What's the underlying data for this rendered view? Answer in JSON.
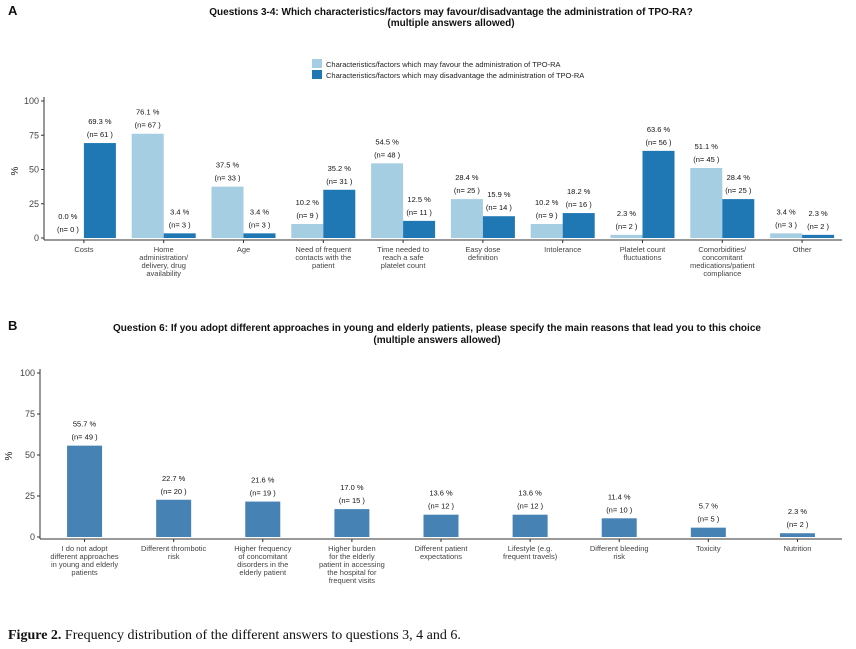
{
  "caption": {
    "label": "Figure 2.",
    "text": " Frequency distribution of the different answers to questions 3, 4 and 6."
  },
  "chart_data": [
    {
      "panel_label": "A",
      "type": "bar",
      "title": "Questions 3-4: Which characteristics/factors may favour/disadvantage the administration of TPO-RA?",
      "subtitle": "(multiple answers allowed)",
      "ylabel": "%",
      "xlabel": "",
      "ylim": [
        0,
        100
      ],
      "yticks": [
        "0",
        "25",
        "50",
        "75",
        "100"
      ],
      "grid": false,
      "legend_position": "top",
      "categories": [
        [
          "Costs"
        ],
        [
          "Home",
          "administration/",
          "delivery, drug",
          "availability"
        ],
        [
          "Age"
        ],
        [
          "Need of frequent",
          "contacts with the",
          "patient"
        ],
        [
          "Time needed to",
          "reach a safe",
          "platelet count"
        ],
        [
          "Easy dose",
          "definition"
        ],
        [
          "Intolerance"
        ],
        [
          "Platelet count",
          "fluctuations"
        ],
        [
          "Comorbidities/",
          "concomitant",
          "medications/patient",
          "compliance"
        ],
        [
          "Other"
        ]
      ],
      "series": [
        {
          "name": "Characteristics/factors which may favour the administration of TPO-RA",
          "color": "#a6cee3",
          "values": [
            0.0,
            76.1,
            37.5,
            10.2,
            54.5,
            28.4,
            10.2,
            2.3,
            51.1,
            3.4
          ],
          "pct_labels": [
            "0.0 %",
            "76.1 %",
            "37.5 %",
            "10.2 %",
            "54.5 %",
            "28.4 %",
            "10.2 %",
            "2.3 %",
            "51.1 %",
            "3.4 %"
          ],
          "n_labels": [
            "(n= 0 )",
            "(n= 67 )",
            "(n= 33 )",
            "(n= 9 )",
            "(n= 48 )",
            "(n= 25 )",
            "(n= 9 )",
            "(n= 2 )",
            "(n= 45 )",
            "(n= 3 )"
          ]
        },
        {
          "name": "Characteristics/factors which may disadvantage the administration of TPO-RA",
          "color": "#1f78b4",
          "values": [
            69.3,
            3.4,
            3.4,
            35.2,
            12.5,
            15.9,
            18.2,
            63.6,
            28.4,
            2.3
          ],
          "pct_labels": [
            "69.3 %",
            "3.4 %",
            "3.4 %",
            "35.2 %",
            "12.5 %",
            "15.9 %",
            "18.2 %",
            "63.6 %",
            "28.4 %",
            "2.3 %"
          ],
          "n_labels": [
            "(n= 61 )",
            "(n= 3 )",
            "(n= 3 )",
            "(n= 31 )",
            "(n= 11 )",
            "(n= 14 )",
            "(n= 16 )",
            "(n= 56 )",
            "(n= 25 )",
            "(n= 2 )"
          ]
        }
      ]
    },
    {
      "panel_label": "B",
      "type": "bar",
      "title": "Question 6: If you adopt different approaches in young and elderly patients, please specify the main reasons that lead you to this choice",
      "subtitle": "(multiple answers allowed)",
      "ylabel": "%",
      "xlabel": "",
      "ylim": [
        0,
        100
      ],
      "yticks": [
        "0",
        "25",
        "50",
        "75",
        "100"
      ],
      "grid": false,
      "categories": [
        [
          "I do not adopt",
          "different approaches",
          "in young and elderly",
          "patients"
        ],
        [
          "Different thrombotic",
          "risk"
        ],
        [
          "Higher frequency",
          "of concomitant",
          "disorders in the",
          "elderly patient"
        ],
        [
          "Higher burden",
          "for the elderly",
          "patient in accessing",
          "the hospital for",
          "frequent visits"
        ],
        [
          "Different patient",
          "expectations"
        ],
        [
          "Lifestyle (e.g.",
          "frequent travels)"
        ],
        [
          "Different bleeding",
          "risk"
        ],
        [
          "Toxicity"
        ],
        [
          "Nutrition"
        ]
      ],
      "series": [
        {
          "color": "#4682b4",
          "values": [
            55.7,
            22.7,
            21.6,
            17.0,
            13.6,
            13.6,
            11.4,
            5.7,
            2.3
          ],
          "pct_labels": [
            "55.7 %",
            "22.7 %",
            "21.6 %",
            "17.0 %",
            "13.6 %",
            "13.6 %",
            "11.4 %",
            "5.7 %",
            "2.3 %"
          ],
          "n_labels": [
            "(n= 49 )",
            "(n= 20 )",
            "(n= 19 )",
            "(n= 15 )",
            "(n= 12 )",
            "(n= 12 )",
            "(n= 10 )",
            "(n= 5 )",
            "(n= 2 )"
          ]
        }
      ]
    }
  ]
}
